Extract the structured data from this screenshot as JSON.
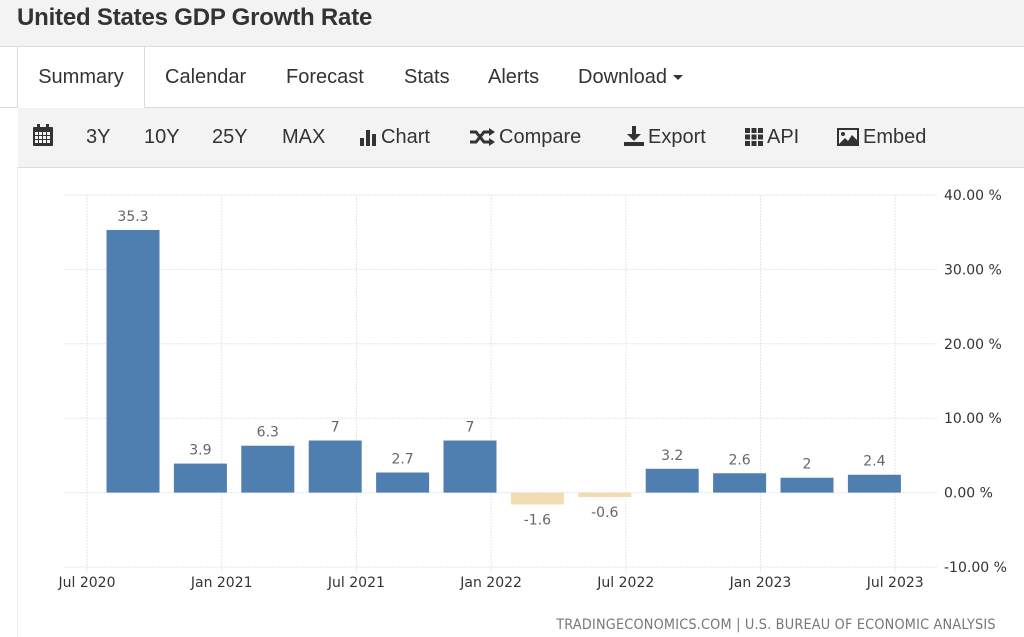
{
  "header": {
    "title": "United States GDP Growth Rate"
  },
  "tabs": [
    {
      "label": "Summary",
      "active": true
    },
    {
      "label": "Calendar"
    },
    {
      "label": "Forecast"
    },
    {
      "label": "Stats"
    },
    {
      "label": "Alerts"
    },
    {
      "label": "Download",
      "dropdown": true
    }
  ],
  "toolbar": {
    "calendar_icon": "calendar-icon",
    "ranges": [
      "3Y",
      "10Y",
      "25Y",
      "MAX"
    ],
    "chart_label": "Chart",
    "compare_label": "Compare",
    "export_label": "Export",
    "api_label": "API",
    "embed_label": "Embed"
  },
  "colors": {
    "positive_bar": "#4f7fb0",
    "negative_bar": "#f1dcb4",
    "grid": "#e6e6e6"
  },
  "chart_data": {
    "type": "bar",
    "title": "United States GDP Growth Rate",
    "categories": [
      "Q3 2020",
      "Q4 2020",
      "Q1 2021",
      "Q2 2021",
      "Q3 2021",
      "Q4 2021",
      "Q1 2022",
      "Q2 2022",
      "Q3 2022",
      "Q4 2022",
      "Q1 2023",
      "Q2 2023"
    ],
    "values": [
      35.3,
      3.9,
      6.3,
      7,
      2.7,
      7,
      -1.6,
      -0.6,
      3.2,
      2.6,
      2,
      2.4
    ],
    "data_labels": [
      "35.3",
      "3.9",
      "6.3",
      "7",
      "2.7",
      "7",
      "-1.6",
      "-0.6",
      "3.2",
      "2.6",
      "2",
      "2.4"
    ],
    "x_ticks": [
      "Jul 2020",
      "Jan 2021",
      "Jul 2021",
      "Jan 2022",
      "Jul 2022",
      "Jan 2023",
      "Jul 2023"
    ],
    "y_ticks": [
      "40.00 %",
      "30.00 %",
      "20.00 %",
      "10.00 %",
      "0.00 %",
      "-10.00 %"
    ],
    "y_tick_values": [
      40,
      30,
      20,
      10,
      0,
      -10
    ],
    "ylim": [
      -10,
      40
    ],
    "xlabel": "",
    "ylabel": "",
    "y_axis_position": "right",
    "grid": true,
    "legend": "none"
  },
  "footer": {
    "source": "TRADINGECONOMICS.COM | U.S. BUREAU OF ECONOMIC ANALYSIS"
  }
}
